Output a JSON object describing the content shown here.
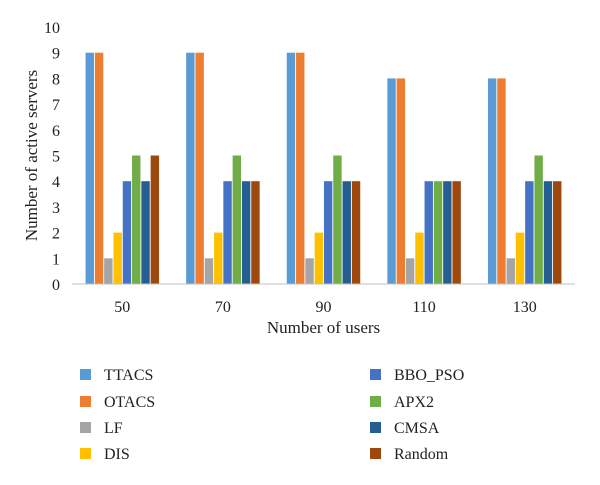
{
  "chart_data": {
    "type": "bar",
    "xlabel": "Number of users",
    "ylabel": "Number of active servers",
    "ylim": [
      0,
      10
    ],
    "yticks": [
      0,
      1,
      2,
      3,
      4,
      5,
      6,
      7,
      8,
      9,
      10
    ],
    "grid": false,
    "legend_position": "bottom",
    "categories": [
      "50",
      "70",
      "90",
      "110",
      "130"
    ],
    "series": [
      {
        "name": "TTACS",
        "color": "#5B9BD5",
        "values": [
          9,
          9,
          9,
          8,
          8
        ]
      },
      {
        "name": "OTACS",
        "color": "#ED7D31",
        "values": [
          9,
          9,
          9,
          8,
          8
        ]
      },
      {
        "name": "LF",
        "color": "#A5A5A5",
        "values": [
          1,
          1,
          1,
          1,
          1
        ]
      },
      {
        "name": "DIS",
        "color": "#FFC000",
        "values": [
          2,
          2,
          2,
          2,
          2
        ]
      },
      {
        "name": "BBO_PSO",
        "color": "#4472C4",
        "values": [
          4,
          4,
          4,
          4,
          4
        ]
      },
      {
        "name": "APX2",
        "color": "#70AD47",
        "values": [
          5,
          5,
          5,
          4,
          5
        ]
      },
      {
        "name": "CMSA",
        "color": "#255E91",
        "values": [
          4,
          4,
          4,
          4,
          4
        ]
      },
      {
        "name": "Random",
        "color": "#9E480E",
        "values": [
          5,
          4,
          4,
          4,
          4
        ]
      }
    ]
  }
}
